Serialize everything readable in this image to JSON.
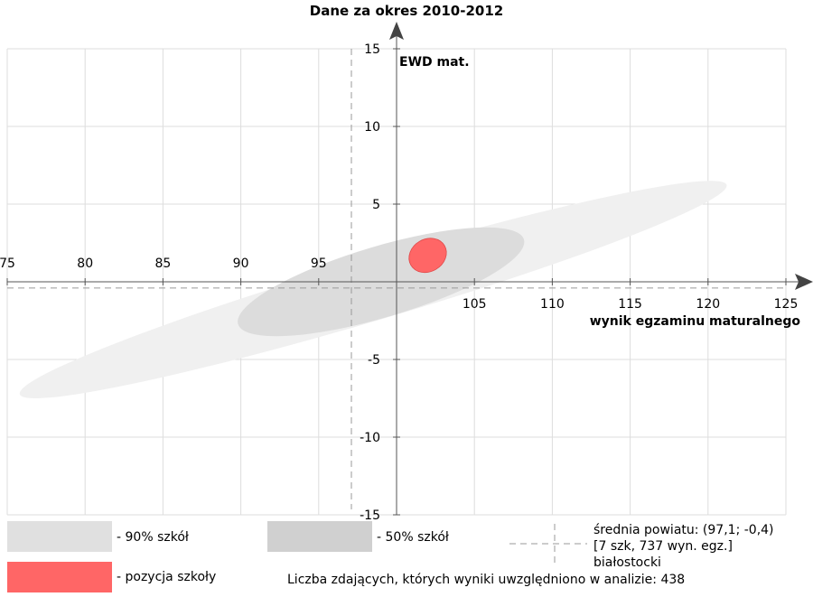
{
  "chart_data": {
    "type": "scatter",
    "title": "Dane za okres 2010-2012",
    "xlabel": "wynik egzaminu maturalnego",
    "ylabel": "EWD mat.",
    "xlim": [
      75,
      125
    ],
    "ylim": [
      -15,
      15
    ],
    "x_ticks": [
      75,
      80,
      85,
      90,
      95,
      105,
      110,
      115,
      120,
      125
    ],
    "y_ticks": [
      15,
      10,
      5,
      -5,
      -10,
      -15
    ],
    "grid": true,
    "axes_cross": [
      100,
      0
    ],
    "colors": {
      "ellipse_90": "#f0f0f0",
      "ellipse_50": "#dcdcdc",
      "school": "#ff6666",
      "grid": "#dddddd",
      "axis": "#555555"
    },
    "ellipses": [
      {
        "label": "- 90% szkół",
        "center_x": 98.5,
        "center_y": -0.5,
        "x_min": 75.8,
        "x_max": 121.2,
        "y_top": 7,
        "y_bottom": -7,
        "angle_deg": -16.5,
        "color_key": "ellipse_90"
      },
      {
        "label": "- 50% szkół",
        "center_x": 99.0,
        "center_y": 0.0,
        "x_min": 89.8,
        "x_max": 108.2,
        "y_top": 3.5,
        "y_bottom": -3.5,
        "angle_deg": -16.5,
        "color_key": "ellipse_50"
      },
      {
        "label": "- pozycja szkoły",
        "center_x": 102.0,
        "center_y": 1.7,
        "x_min": 100.8,
        "x_max": 103.2,
        "y_top": 2.8,
        "y_bottom": 0.6,
        "angle_deg": -30,
        "color_key": "school"
      }
    ],
    "district_mean": {
      "x": 97.1,
      "y": -0.4
    },
    "legend": {
      "placement": "bottom",
      "entries": [
        "- 90% szkół",
        "- 50% szkół",
        "- pozycja szkoły"
      ],
      "mean_text": [
        "średnia powiatu: (97,1; -0,4)",
        "[7 szk, 737 wyn. egz.]",
        "białostocki"
      ]
    },
    "note": "Liczba zdających, których wyniki uwzględniono w analizie: 438"
  }
}
